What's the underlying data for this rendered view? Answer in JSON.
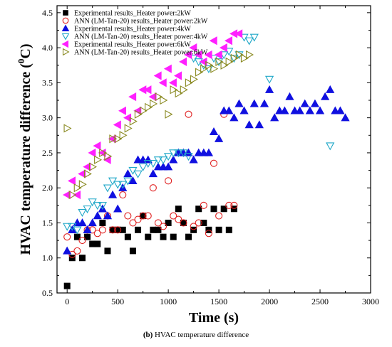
{
  "caption": {
    "letter": "(b)",
    "text": " HVAC temperature difference"
  },
  "chart_data": {
    "type": "scatter",
    "xlabel": "Time (s)",
    "ylabel": "HVAC temperature difference (",
    "ylabel_unit": "0",
    "ylabel_tail": "C)",
    "xlim": [
      -100,
      3000
    ],
    "ylim": [
      0.5,
      4.6
    ],
    "xticks": [
      "0",
      "500",
      "1000",
      "1500",
      "2000",
      "2500",
      "3000"
    ],
    "yticks": [
      "0.5",
      "1.0",
      "1.5",
      "2.0",
      "2.5",
      "3.0",
      "3.5",
      "4.0",
      "4.5"
    ],
    "legend_position": "top-left",
    "series": [
      {
        "name": "Experimental results_Heater power:2kW",
        "marker": "square",
        "color": "#000000",
        "x": [
          0,
          50,
          100,
          150,
          200,
          250,
          300,
          350,
          400,
          450,
          500,
          550,
          600,
          650,
          700,
          750,
          800,
          850,
          900,
          950,
          1000,
          1050,
          1100,
          1150,
          1200,
          1250,
          1300,
          1350,
          1400,
          1450,
          1500,
          1550,
          1600,
          1650
        ],
        "y": [
          0.6,
          1.0,
          1.3,
          1.0,
          1.3,
          1.2,
          1.2,
          1.5,
          1.1,
          1.4,
          1.4,
          1.4,
          1.3,
          1.1,
          1.4,
          1.6,
          1.3,
          1.4,
          1.4,
          1.3,
          1.5,
          1.3,
          1.7,
          1.5,
          1.3,
          1.4,
          1.7,
          1.5,
          1.4,
          1.7,
          1.4,
          1.7,
          1.4,
          1.7
        ]
      },
      {
        "name": "ANN (LM-Tan-20) results_Heater power:2kW",
        "marker": "circle",
        "color": "#e02020",
        "x": [
          0,
          50,
          100,
          150,
          200,
          250,
          300,
          350,
          400,
          450,
          500,
          550,
          600,
          650,
          700,
          750,
          800,
          850,
          900,
          950,
          1000,
          1050,
          1100,
          1150,
          1200,
          1250,
          1300,
          1350,
          1400,
          1450,
          1500,
          1550,
          1600,
          1650
        ],
        "y": [
          1.3,
          1.05,
          1.1,
          1.25,
          1.4,
          1.4,
          1.35,
          1.4,
          1.6,
          1.4,
          1.4,
          1.9,
          1.6,
          1.5,
          1.55,
          1.6,
          1.6,
          2.0,
          1.5,
          1.45,
          2.1,
          1.6,
          1.55,
          1.5,
          3.05,
          1.45,
          1.5,
          1.75,
          1.35,
          2.35,
          1.6,
          3.05,
          1.75,
          1.75
        ]
      },
      {
        "name": "Experimental results_Heater power:4kW",
        "marker": "triangle-up",
        "color": "#1010e0",
        "x": [
          0,
          50,
          100,
          150,
          200,
          250,
          300,
          350,
          400,
          450,
          500,
          550,
          600,
          650,
          700,
          750,
          800,
          850,
          900,
          950,
          1000,
          1050,
          1100,
          1150,
          1200,
          1250,
          1300,
          1350,
          1400,
          1450,
          1500,
          1550,
          1600,
          1650,
          1700,
          1750,
          1800,
          1850,
          1900,
          1950,
          2000,
          2050,
          2100,
          2150,
          2200,
          2250,
          2300,
          2350,
          2400,
          2450,
          2500,
          2550,
          2600,
          2650,
          2700,
          2750
        ],
        "y": [
          1.1,
          1.4,
          1.5,
          1.5,
          1.4,
          1.5,
          1.6,
          1.7,
          1.6,
          1.9,
          1.7,
          2.0,
          2.2,
          2.1,
          2.4,
          2.4,
          2.4,
          2.2,
          2.3,
          2.3,
          2.3,
          2.4,
          2.5,
          2.5,
          2.5,
          2.4,
          2.5,
          2.5,
          2.5,
          2.8,
          2.7,
          3.1,
          3.1,
          3.0,
          3.2,
          3.1,
          2.9,
          3.2,
          2.9,
          3.2,
          3.4,
          3.0,
          3.1,
          3.1,
          3.3,
          3.1,
          3.1,
          3.2,
          3.1,
          3.2,
          3.1,
          3.3,
          3.4,
          3.1,
          3.1,
          3.0
        ]
      },
      {
        "name": "ANN (LM-Tan-20) results_Heater power:4kW",
        "marker": "triangle-down",
        "color": "#20a8c8",
        "x": [
          0,
          50,
          100,
          150,
          200,
          250,
          300,
          350,
          400,
          450,
          500,
          550,
          600,
          650,
          700,
          750,
          800,
          850,
          900,
          950,
          1000,
          1050,
          1100,
          1150,
          1200,
          1250,
          1300,
          1350,
          1400,
          1450,
          1500,
          1550,
          1600,
          1650,
          1700,
          1750,
          1800,
          1850,
          2000,
          2600
        ],
        "y": [
          1.45,
          1.45,
          1.4,
          1.65,
          1.7,
          1.8,
          1.75,
          1.75,
          2.0,
          2.1,
          2.05,
          2.05,
          2.1,
          2.25,
          2.2,
          2.3,
          2.35,
          2.35,
          2.4,
          2.4,
          2.45,
          2.5,
          2.5,
          2.5,
          2.45,
          3.85,
          3.8,
          3.75,
          3.7,
          3.85,
          3.8,
          3.9,
          3.95,
          3.85,
          3.9,
          4.15,
          4.1,
          4.15,
          3.55,
          2.6
        ]
      },
      {
        "name": "Experimental results_Heater power:6kW",
        "marker": "triangle-left",
        "color": "#ff20ff",
        "x": [
          0,
          50,
          100,
          150,
          200,
          250,
          300,
          350,
          400,
          450,
          500,
          550,
          600,
          650,
          700,
          750,
          800,
          850,
          900,
          950,
          1000,
          1050,
          1100,
          1150,
          1200,
          1250,
          1300,
          1350,
          1400,
          1450,
          1500,
          1550,
          1600,
          1650,
          1700
        ],
        "y": [
          1.9,
          2.1,
          1.9,
          2.2,
          2.3,
          2.5,
          2.6,
          2.5,
          2.4,
          2.7,
          2.9,
          3.1,
          3.0,
          3.3,
          3.1,
          3.4,
          3.4,
          3.3,
          3.6,
          3.5,
          3.7,
          3.5,
          3.6,
          3.8,
          3.9,
          4.0,
          3.9,
          3.8,
          3.9,
          4.1,
          3.9,
          4.0,
          4.1,
          4.2,
          4.2
        ]
      },
      {
        "name": "ANN (LM-Tan-20) results_Heater power:6kW",
        "marker": "triangle-right",
        "color": "#8a8a22",
        "x": [
          0,
          50,
          100,
          150,
          200,
          250,
          300,
          350,
          400,
          450,
          500,
          550,
          600,
          650,
          700,
          750,
          800,
          850,
          900,
          950,
          1000,
          1050,
          1100,
          1150,
          1200,
          1250,
          1300,
          1350,
          1400,
          1450,
          1500,
          1550,
          1600,
          1650,
          1700,
          1750,
          1800
        ],
        "y": [
          2.85,
          1.9,
          2.0,
          2.05,
          2.2,
          2.3,
          2.4,
          2.5,
          2.45,
          2.7,
          2.7,
          2.75,
          2.85,
          2.95,
          3.05,
          3.1,
          3.15,
          3.2,
          3.3,
          3.25,
          3.05,
          3.4,
          3.35,
          3.4,
          3.5,
          3.55,
          3.65,
          3.7,
          3.75,
          3.7,
          3.8,
          3.75,
          3.8,
          3.85,
          3.9,
          3.85,
          3.9
        ]
      }
    ]
  }
}
